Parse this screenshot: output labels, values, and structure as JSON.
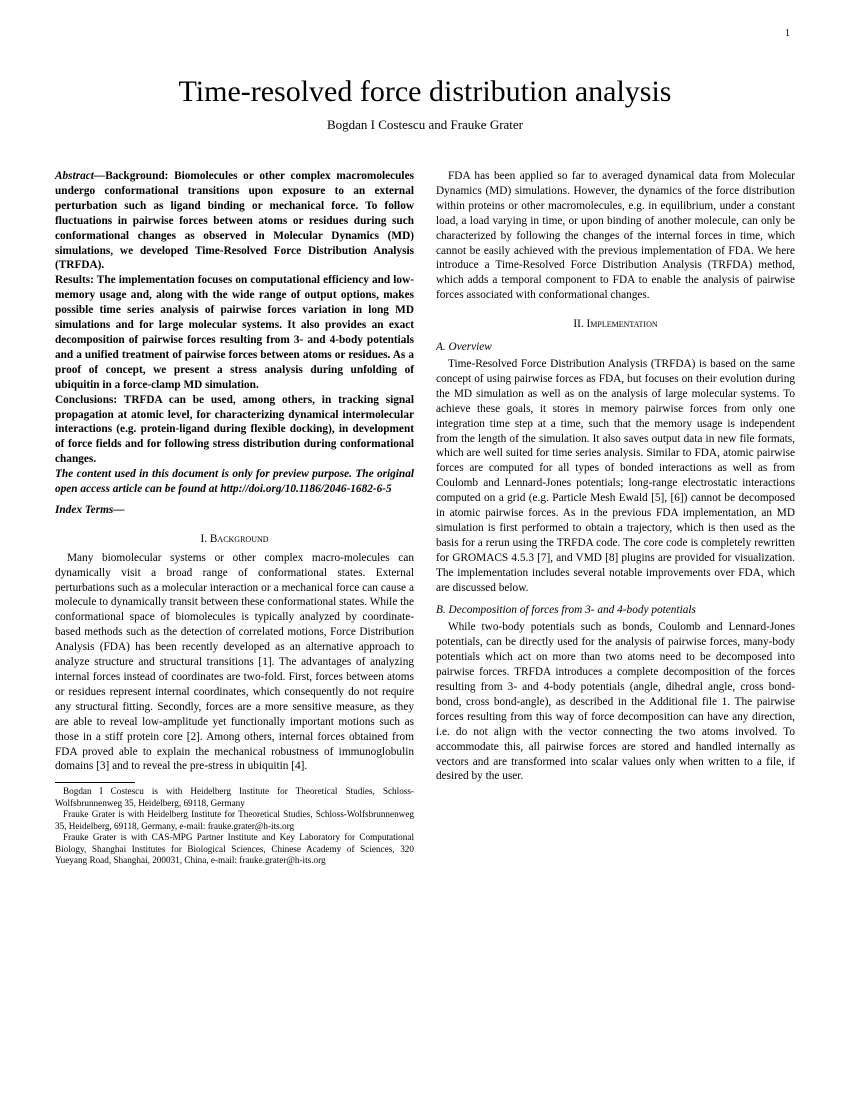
{
  "page_number": "1",
  "title": "Time-resolved force distribution analysis",
  "authors": "Bogdan I Costescu and Frauke Grater",
  "abstract": {
    "label": "Abstract—",
    "background_label": "Background: ",
    "background": "Biomolecules or other complex macromolecules undergo conformational transitions upon exposure to an external perturbation such as ligand binding or mechanical force. To follow fluctuations in pairwise forces between atoms or residues during such conformational changes as observed in Molecular Dynamics (MD) simulations, we developed Time-Resolved Force Distribution Analysis (TRFDA).",
    "results_label": "Results: ",
    "results": "The implementation focuses on computational efficiency and low-memory usage and, along with the wide range of output options, makes possible time series analysis of pairwise forces variation in long MD simulations and for large molecular systems. It also provides an exact decomposition of pairwise forces resulting from 3- and 4-body potentials and a unified treatment of pairwise forces between atoms or residues. As a proof of concept, we present a stress analysis during unfolding of ubiquitin in a force-clamp MD simulation.",
    "conclusions_label": "Conclusions: ",
    "conclusions": "TRFDA can be used, among others, in tracking signal propagation at atomic level, for characterizing dynamical intermolecular interactions (e.g. protein-ligand during flexible docking), in development of force fields and for following stress distribution during conformational changes.",
    "preview": "The content used in this document is only for preview purpose. The original open access article can be found at http://doi.org/10.1186/2046-1682-6-5"
  },
  "index_terms_label": "Index Terms—",
  "sections": {
    "s1_heading": "I.  Background",
    "s1_p1": "Many biomolecular systems or other complex macro-molecules can dynamically visit a broad range of conformational states. External perturbations such as a molecular interaction or a mechanical force can cause a molecule to dynamically transit between these conformational states. While the conformational space of biomolecules is typically analyzed by coordinate-based methods such as the detection of correlated motions, Force Distribution Analysis (FDA) has been recently developed as an alternative approach to analyze structure and structural transitions [1]. The advantages of analyzing internal forces instead of coordinates are two-fold. First, forces between atoms or residues represent internal coordinates, which consequently do not require any structural fitting. Secondly, forces are a more sensitive measure, as they are able to reveal low-amplitude yet functionally important motions such as those in a stiff protein core [2]. Among others, internal forces obtained from FDA proved able to explain the mechanical robustness of immunoglobulin domains [3] and to reveal the pre-stress in ubiquitin [4].",
    "s1_p2": "FDA has been applied so far to averaged dynamical data from Molecular Dynamics (MD) simulations. However, the dynamics of the force distribution within proteins or other macromolecules, e.g. in equilibrium, under a constant load, a load varying in time, or upon binding of another molecule, can only be characterized by following the changes of the internal forces in time, which cannot be easily achieved with the previous implementation of FDA. We here introduce a Time-Resolved Force Distribution Analysis (TRFDA) method, which adds a temporal component to FDA to enable the analysis of pairwise forces associated with conformational changes.",
    "s2_heading": "II.  Implementation",
    "s2a_heading": "A. Overview",
    "s2a_p1": "Time-Resolved Force Distribution Analysis (TRFDA) is based on the same concept of using pairwise forces as FDA, but focuses on their evolution during the MD simulation as well as on the analysis of large molecular systems. To achieve these goals, it stores in memory pairwise forces from only one integration time step at a time, such that the memory usage is independent from the length of the simulation. It also saves output data in new file formats, which are well suited for time series analysis. Similar to FDA, atomic pairwise forces are computed for all types of bonded interactions as well as from Coulomb and Lennard-Jones potentials; long-range electrostatic interactions computed on a grid (e.g. Particle Mesh Ewald [5], [6]) cannot be decomposed in atomic pairwise forces. As in the previous FDA implementation, an MD simulation is first performed to obtain a trajectory, which is then used as the basis for a rerun using the TRFDA code. The core code is completely rewritten for GROMACS 4.5.3 [7], and VMD [8] plugins are provided for visualization. The implementation includes several notable improvements over FDA, which are discussed below.",
    "s2b_heading": "B. Decomposition of forces from 3- and 4-body potentials",
    "s2b_p1": "While two-body potentials such as bonds, Coulomb and Lennard-Jones potentials, can be directly used for the analysis of pairwise forces, many-body potentials which act on more than two atoms need to be decomposed into pairwise forces. TRFDA introduces a complete decomposition of the forces resulting from 3- and 4-body potentials (angle, dihedral angle, cross bond-bond, cross bond-angle), as described in the Additional file 1. The pairwise forces resulting from this way of force decomposition can have any direction, i.e. do not align with the vector connecting the two atoms involved. To accommodate this, all pairwise forces are stored and handled internally as vectors and are transformed into scalar values only when written to a file, if desired by the user."
  },
  "footnotes": {
    "f1": "Bogdan I Costescu is with Heidelberg Institute for Theoretical Studies, Schloss-Wolfsbrunnenweg 35, Heidelberg, 69118, Germany",
    "f2": "Frauke Grater is with Heidelberg Institute for Theoretical Studies, Schloss-Wolfsbrunnenweg 35, Heidelberg, 69118, Germany, e-mail: frauke.grater@h-its.org",
    "f3": "Frauke Grater is with CAS-MPG Partner Institute and Key Laboratory for Computational Biology, Shanghai Institutes for Biological Sciences, Chinese Academy of Sciences, 320 Yueyang Road, Shanghai, 200031, China, e-mail: frauke.grater@h-its.org"
  }
}
